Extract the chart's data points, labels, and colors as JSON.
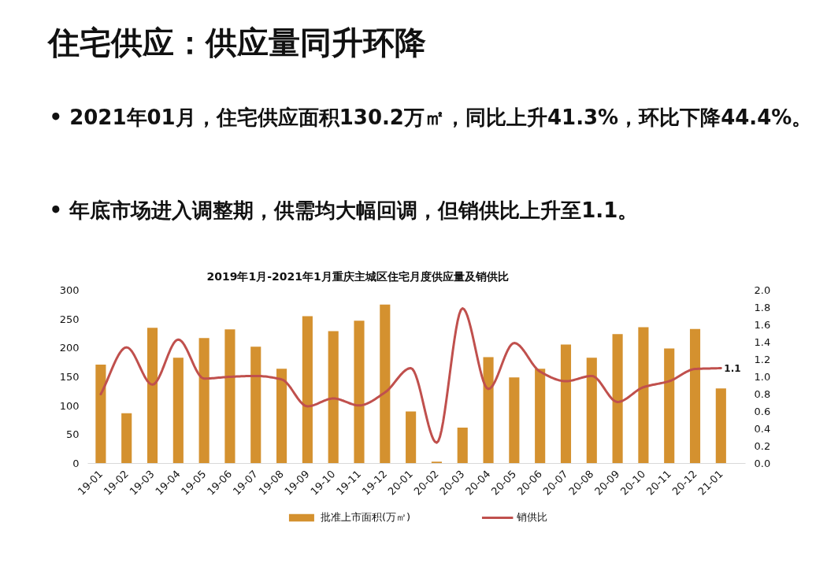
{
  "chart_data": {
    "type": "bar",
    "title": "2019年1月-2021年1月重庆主城区住宅月度供应量及销供比",
    "annotations": [
      "住宅供应：供应量同升环降",
      "• 2021年01月，住宅供应面积130.2万㎡，同比上升41.3%，环比下降44.4%。",
      "• 年底市场进入调整期，供需均大幅回调，但销供比上升至1.1。"
    ],
    "categories": [
      "19-01",
      "19-02",
      "19-03",
      "19-04",
      "19-05",
      "19-06",
      "19-07",
      "19-08",
      "19-09",
      "19-10",
      "19-11",
      "19-12",
      "20-01",
      "20-02",
      "20-03",
      "20-04",
      "20-05",
      "20-06",
      "20-07",
      "20-08",
      "20-09",
      "20-10",
      "20-11",
      "20-12",
      "21-01"
    ],
    "series": [
      {
        "name": "批准上市面积(万㎡)",
        "color": "#d4912f",
        "values": [
          171,
          87,
          235,
          183,
          217,
          232,
          202,
          164,
          255,
          229,
          247,
          275,
          90,
          3,
          62,
          184,
          149,
          164,
          206,
          183,
          224,
          236,
          199,
          233,
          130
        ]
      },
      {
        "name": "销供比",
        "type": "line",
        "axis": "y2",
        "color": "#c0504d",
        "values": [
          0.8,
          1.34,
          0.91,
          1.43,
          0.98,
          1.0,
          1.01,
          0.97,
          0.66,
          0.75,
          0.67,
          0.82,
          1.1,
          0.24,
          1.79,
          0.86,
          1.39,
          1.06,
          0.95,
          1.01,
          0.71,
          0.88,
          0.95,
          1.09,
          1.1
        ],
        "value_labels": [
          null,
          null,
          null,
          null,
          null,
          null,
          null,
          null,
          null,
          null,
          null,
          null,
          null,
          null,
          null,
          null,
          null,
          null,
          null,
          null,
          null,
          null,
          null,
          null,
          "1.1"
        ]
      }
    ],
    "ylim": [
      0,
      300
    ],
    "yticks": [
      0,
      50,
      100,
      150,
      200,
      250,
      300
    ],
    "y2lim": [
      0,
      2
    ],
    "y2ticks": [
      {
        "value": 0,
        "label": "0.0"
      },
      0.2,
      0.4,
      0.6,
      0.8,
      {
        "value": 1,
        "label": "1.0"
      },
      1.2,
      1.4,
      1.6,
      1.8,
      {
        "value": 2,
        "label": "2.0"
      }
    ],
    "legend": "bottom"
  }
}
